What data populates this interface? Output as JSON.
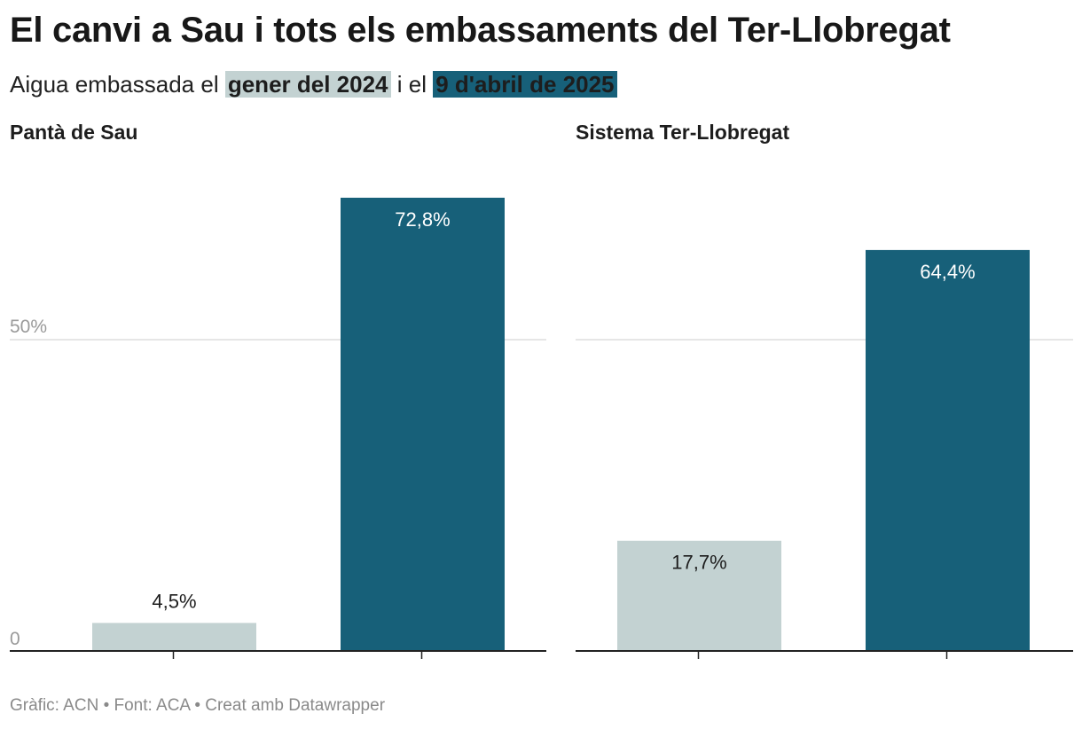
{
  "header": {
    "title": "El canvi a Sau i tots els embassaments del Ter-Llobregat",
    "subtitle_prefix": "Aigua embassada el",
    "subtitle_series1": "gener del 2024",
    "subtitle_between": "i el",
    "subtitle_series2": "9 d'abril de 2025"
  },
  "colors": {
    "series1": "#c3d2d2",
    "series2": "#176079",
    "gridline": "#dddddd",
    "tick_label": "#9a9a9a",
    "baseline": "#222222"
  },
  "chart_data": {
    "type": "bar",
    "title": "El canvi a Sau i tots els embassaments del Ter-Llobregat",
    "subtitle": "Aigua embassada el gener del 2024 i el 9 d'abril de 2025",
    "y_unit": "%",
    "ylim": [
      0,
      100
    ],
    "y_ticks": [
      {
        "value": 0,
        "label": "0"
      },
      {
        "value": 50,
        "label": "50%"
      }
    ],
    "series": [
      {
        "name": "gener del 2024",
        "color": "#c3d2d2"
      },
      {
        "name": "9 d'abril de 2025",
        "color": "#176079"
      }
    ],
    "panels": [
      {
        "title": "Pantà de Sau",
        "values": [
          4.5,
          72.8
        ],
        "value_labels": [
          "4,5%",
          "72,8%"
        ]
      },
      {
        "title": "Sistema Ter-Llobregat",
        "values": [
          17.7,
          64.4
        ],
        "value_labels": [
          "17,7%",
          "64,4%"
        ]
      }
    ]
  },
  "footer": {
    "credit": "Gràfic: ACN • Font: ACA • Creat amb Datawrapper"
  }
}
